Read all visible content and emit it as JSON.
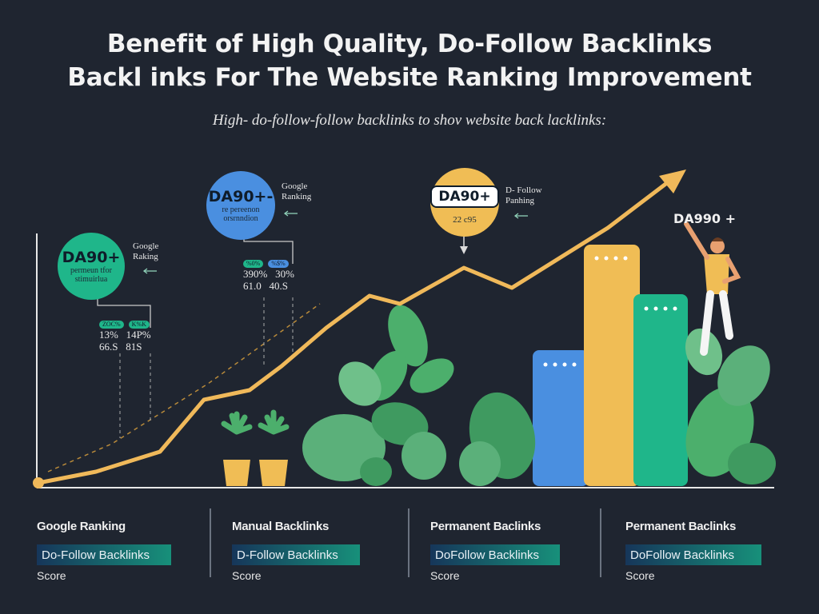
{
  "header": {
    "title_line1": "Benefit of High Quality, Do-Follow Backlinks",
    "title_line2": "Backl inks For The Website Ranking Improvement",
    "subtitle": "High- do-follow-follow backlinks  to shov  website back lacklinks:"
  },
  "badges": [
    {
      "big": "DA90+",
      "small": "permeun tfor\nstimuirlua",
      "color": "#1fb68a",
      "callout": "Google\nRaking"
    },
    {
      "big": "DA90+-",
      "small": "re pereenon\norsrnndion",
      "color": "#4a8fe0",
      "callout": "Google\nRanking"
    },
    {
      "big": "DA90+",
      "small": "22 c95",
      "color": "#f0bd55",
      "callout": "D- Follow\nPanhing"
    }
  ],
  "stats": [
    {
      "pills": [
        "ZOC%",
        "K%K"
      ],
      "row1": "13%   14P%",
      "row2": "66.S   81S"
    },
    {
      "pills": [
        "%0%",
        "%$%"
      ],
      "row1": "390%   30%",
      "row2": "61.0   40.S"
    }
  ],
  "da_label": "DA990 +",
  "bottom": [
    {
      "heading": "Google Ranking",
      "bar": "Do-Follow   Backlinks",
      "score": "Score"
    },
    {
      "heading": "Manual Backlinks",
      "bar": "D-Follow   Backlinks",
      "score": "Score"
    },
    {
      "heading": "Permanent Baclinks",
      "bar": "DoFollow   Backlinks",
      "score": "Score"
    },
    {
      "heading": "Permanent Baclinks",
      "bar": "DoFollow     Backlinks",
      "score": "Score"
    }
  ],
  "colors": {
    "background": "#1f2530",
    "trend": "#f0b95a",
    "blue_bar": "#4a8fe0",
    "orange_bar": "#f0bd55",
    "green_bar": "#1fb68a",
    "leaf": "#4caf6c"
  }
}
